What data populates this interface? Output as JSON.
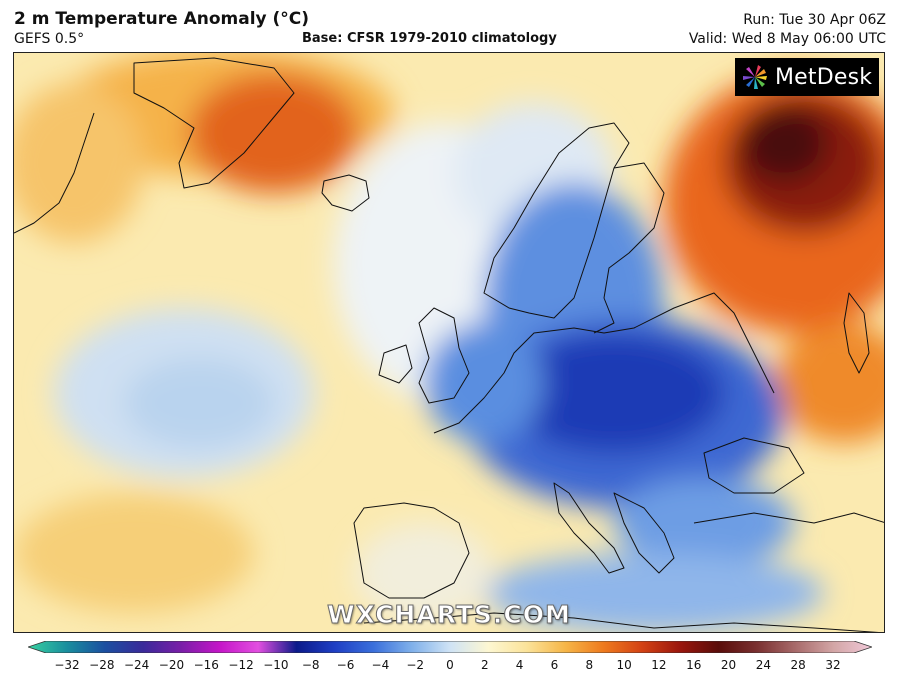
{
  "header": {
    "title": "2 m Temperature Anomaly (°C)",
    "model": "GEFS 0.5°",
    "base": "Base: CFSR 1979-2010 climatology",
    "run": "Run: Tue 30 Apr 06Z",
    "valid": "Valid: Wed 8 May 06:00 UTC"
  },
  "logo": {
    "text": "MetDesk"
  },
  "watermark": "WXCHARTS.COM",
  "colorbar": {
    "ticks": [
      "−32",
      "−28",
      "−24",
      "−20",
      "−16",
      "−12",
      "−10",
      "−8",
      "−6",
      "−4",
      "−2",
      "0",
      "2",
      "4",
      "6",
      "8",
      "10",
      "12",
      "16",
      "20",
      "24",
      "28",
      "32"
    ],
    "colors": [
      "#38d1a0",
      "#1a8f9e",
      "#1b4fa0",
      "#3a2a9a",
      "#7a1ea8",
      "#c516c8",
      "#e24fe0",
      "#0b1a8a",
      "#1f3fc4",
      "#3a6fdb",
      "#7fb0ea",
      "#cfe3f5",
      "#fdf7d2",
      "#fbe39a",
      "#f6b648",
      "#ee7a1e",
      "#d34214",
      "#9a160d",
      "#5a0d0a",
      "#7a3030",
      "#a86a6a",
      "#d3a6a6",
      "#f0c8d8"
    ]
  },
  "map": {
    "region": "Europe and North Atlantic",
    "coldest_anomaly_region": "Central and Eastern Europe",
    "warmest_anomaly_region": "Western Russia"
  }
}
